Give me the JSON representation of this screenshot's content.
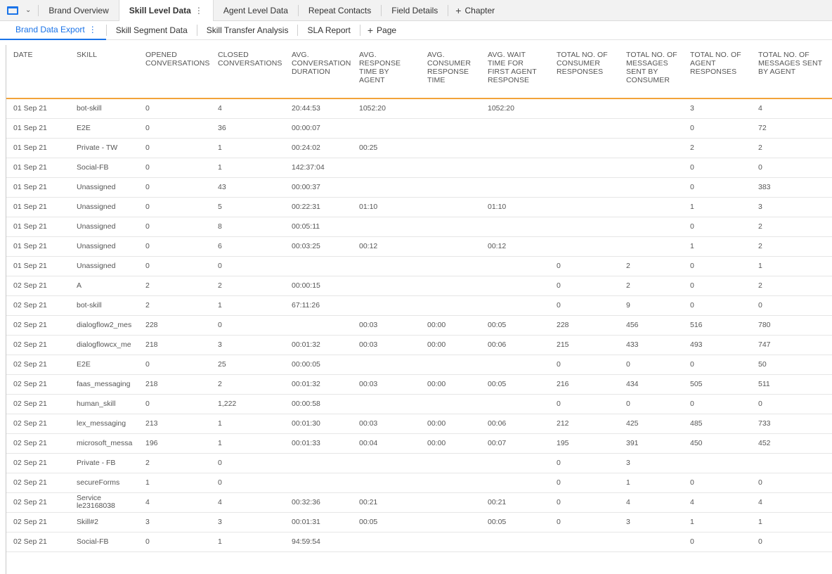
{
  "chapter_tabs": [
    {
      "label": "Brand Overview",
      "active": false
    },
    {
      "label": "Skill Level Data",
      "active": true
    },
    {
      "label": "Agent Level Data",
      "active": false
    },
    {
      "label": "Repeat Contacts",
      "active": false
    },
    {
      "label": "Field Details",
      "active": false
    }
  ],
  "chapter_add_label": "Chapter",
  "page_tabs": [
    {
      "label": "Brand Data Export",
      "active": true
    },
    {
      "label": "Skill Segment Data",
      "active": false
    },
    {
      "label": "Skill Transfer Analysis",
      "active": false
    },
    {
      "label": "SLA Report",
      "active": false
    }
  ],
  "page_add_label": "Page",
  "accent_color": "#1a73e8",
  "header_rule_color": "#f2a33a",
  "table": {
    "columns": [
      "DATE",
      "SKILL",
      "OPENED CONVERSATIONS",
      "CLOSED CONVERSATIONS",
      "AVG. CONVERSATION DURATION",
      "AVG. RESPONSE TIME BY AGENT",
      "AVG. CONSUMER RESPONSE TIME",
      "AVG. WAIT TIME FOR FIRST AGENT RESPONSE",
      "TOTAL NO. OF CONSUMER RESPONSES",
      "TOTAL NO. OF MESSAGES SENT BY CONSUMER",
      "TOTAL NO. OF AGENT RESPONSES",
      "TOTAL NO. OF MESSAGES SENT BY AGENT"
    ],
    "rows": [
      [
        "01 Sep 21",
        "bot-skill",
        "0",
        "4",
        "20:44:53",
        "1052:20",
        "",
        "1052:20",
        "",
        "",
        "3",
        "4"
      ],
      [
        "01 Sep 21",
        "E2E",
        "0",
        "36",
        "00:00:07",
        "",
        "",
        "",
        "",
        "",
        "0",
        "72"
      ],
      [
        "01 Sep 21",
        "Private - TW",
        "0",
        "1",
        "00:24:02",
        "00:25",
        "",
        "",
        "",
        "",
        "2",
        "2"
      ],
      [
        "01 Sep 21",
        "Social-FB",
        "0",
        "1",
        "142:37:04",
        "",
        "",
        "",
        "",
        "",
        "0",
        "0"
      ],
      [
        "01 Sep 21",
        "Unassigned",
        "0",
        "43",
        "00:00:37",
        "",
        "",
        "",
        "",
        "",
        "0",
        "383"
      ],
      [
        "01 Sep 21",
        "Unassigned",
        "0",
        "5",
        "00:22:31",
        "01:10",
        "",
        "01:10",
        "",
        "",
        "1",
        "3"
      ],
      [
        "01 Sep 21",
        "Unassigned",
        "0",
        "8",
        "00:05:11",
        "",
        "",
        "",
        "",
        "",
        "0",
        "2"
      ],
      [
        "01 Sep 21",
        "Unassigned",
        "0",
        "6",
        "00:03:25",
        "00:12",
        "",
        "00:12",
        "",
        "",
        "1",
        "2"
      ],
      [
        "01 Sep 21",
        "Unassigned",
        "0",
        "0",
        "",
        "",
        "",
        "",
        "0",
        "2",
        "0",
        "1"
      ],
      [
        "02 Sep 21",
        "A",
        "2",
        "2",
        "00:00:15",
        "",
        "",
        "",
        "0",
        "2",
        "0",
        "2"
      ],
      [
        "02 Sep 21",
        "bot-skill",
        "2",
        "1",
        "67:11:26",
        "",
        "",
        "",
        "0",
        "9",
        "0",
        "0"
      ],
      [
        "02 Sep 21",
        "dialogflow2_mes",
        "228",
        "0",
        "",
        "00:03",
        "00:00",
        "00:05",
        "228",
        "456",
        "516",
        "780"
      ],
      [
        "02 Sep 21",
        "dialogflowcx_me",
        "218",
        "3",
        "00:01:32",
        "00:03",
        "00:00",
        "00:06",
        "215",
        "433",
        "493",
        "747"
      ],
      [
        "02 Sep 21",
        "E2E",
        "0",
        "25",
        "00:00:05",
        "",
        "",
        "",
        "0",
        "0",
        "0",
        "50"
      ],
      [
        "02 Sep 21",
        "faas_messaging",
        "218",
        "2",
        "00:01:32",
        "00:03",
        "00:00",
        "00:05",
        "216",
        "434",
        "505",
        "511"
      ],
      [
        "02 Sep 21",
        "human_skill",
        "0",
        "1,222",
        "00:00:58",
        "",
        "",
        "",
        "0",
        "0",
        "0",
        "0"
      ],
      [
        "02 Sep 21",
        "lex_messaging",
        "213",
        "1",
        "00:01:30",
        "00:03",
        "00:00",
        "00:06",
        "212",
        "425",
        "485",
        "733"
      ],
      [
        "02 Sep 21",
        "microsoft_messa",
        "196",
        "1",
        "00:01:33",
        "00:04",
        "00:00",
        "00:07",
        "195",
        "391",
        "450",
        "452"
      ],
      [
        "02 Sep 21",
        "Private - FB",
        "2",
        "0",
        "",
        "",
        "",
        "",
        "0",
        "3",
        "",
        ""
      ],
      [
        "02 Sep 21",
        "secureForms",
        "1",
        "0",
        "",
        "",
        "",
        "",
        "0",
        "1",
        "0",
        "0"
      ],
      [
        "02 Sep 21",
        "Service le23168038",
        "4",
        "4",
        "00:32:36",
        "00:21",
        "",
        "00:21",
        "0",
        "4",
        "4",
        "4"
      ],
      [
        "02 Sep 21",
        "Skill#2",
        "3",
        "3",
        "00:01:31",
        "00:05",
        "",
        "00:05",
        "0",
        "3",
        "1",
        "1"
      ],
      [
        "02 Sep 21",
        "Social-FB",
        "0",
        "1",
        "94:59:54",
        "",
        "",
        "",
        "",
        "",
        "0",
        "0"
      ]
    ]
  }
}
